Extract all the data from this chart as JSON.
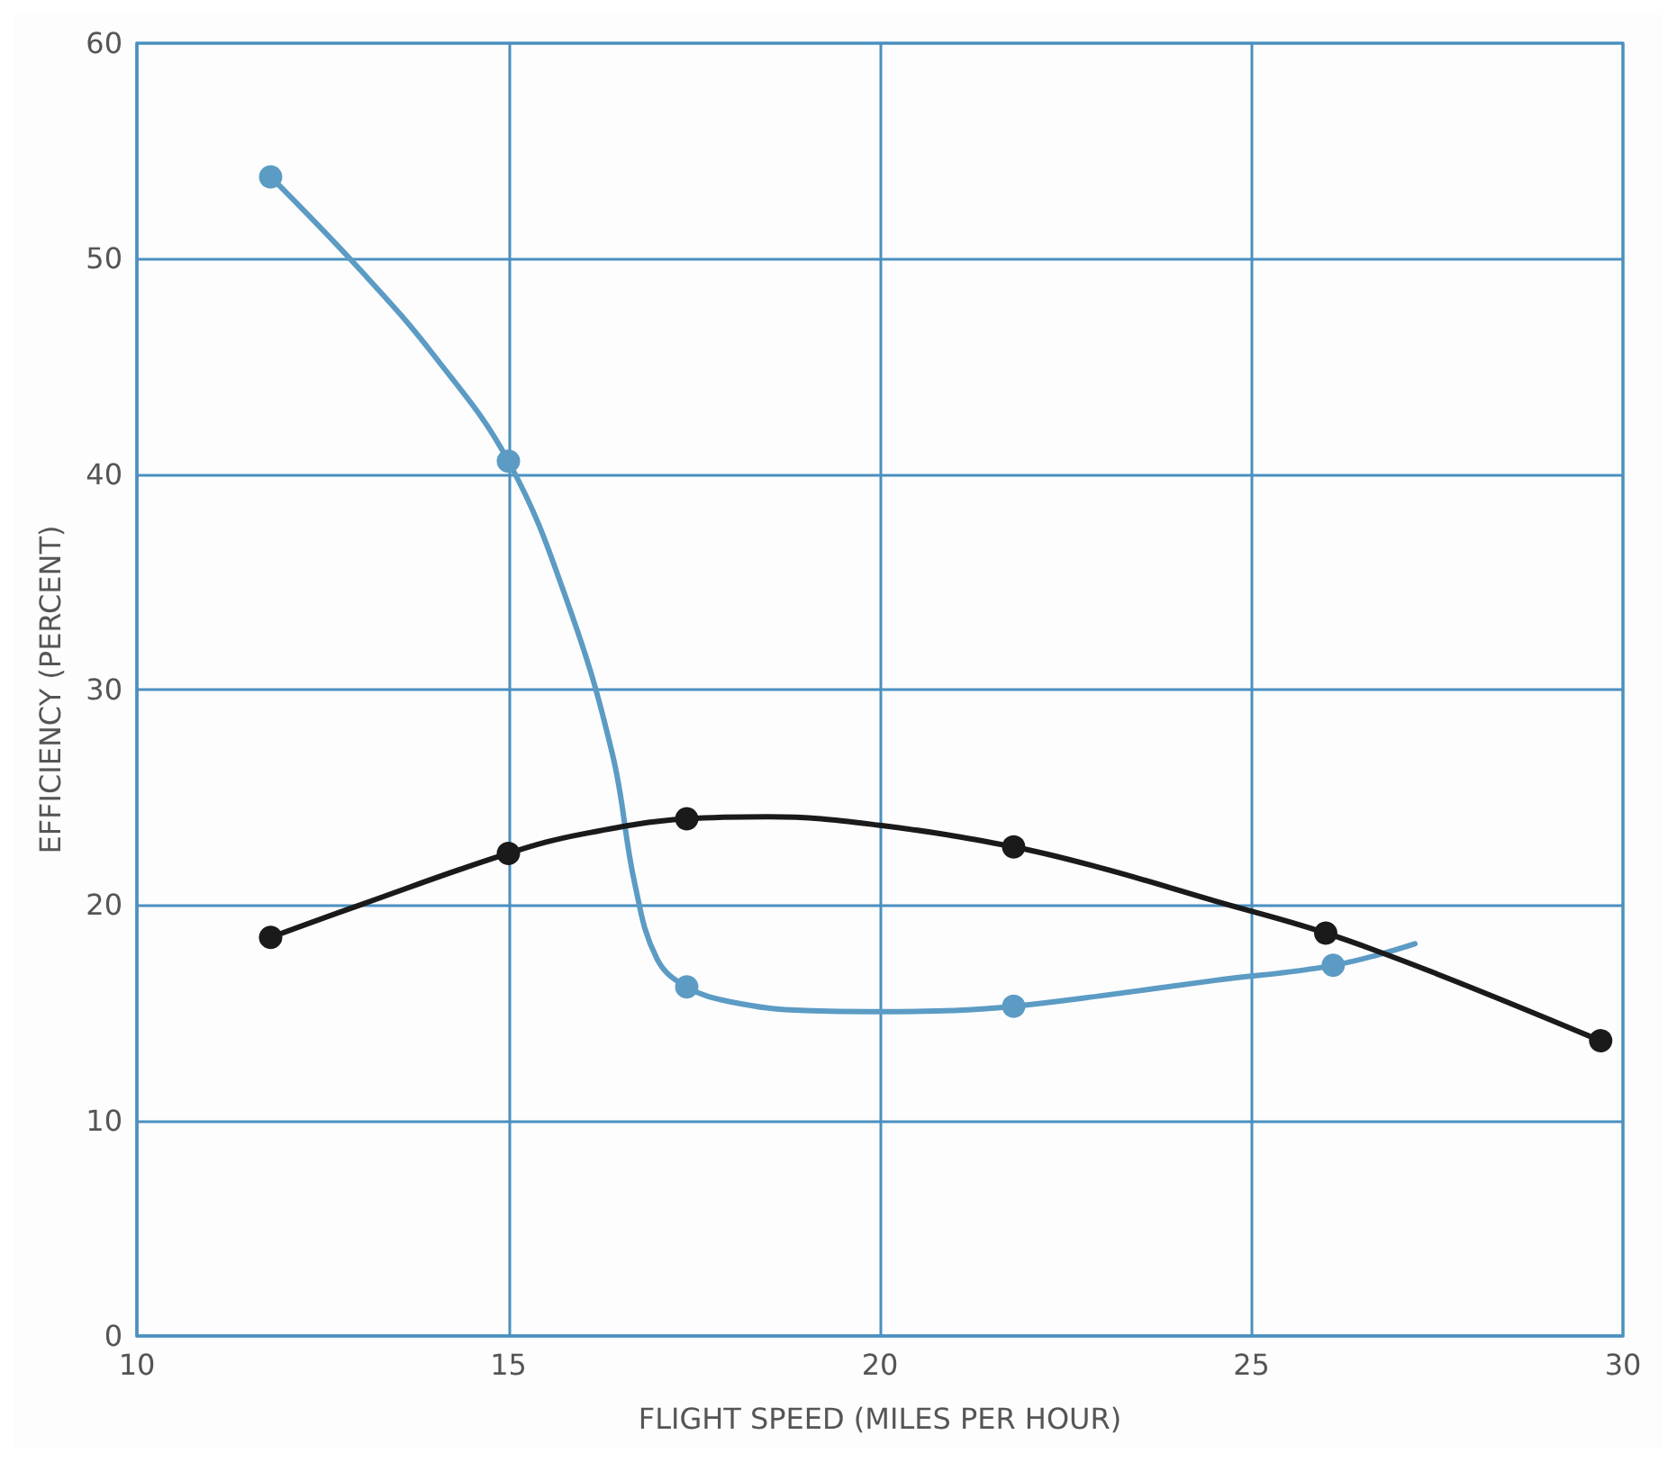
{
  "chart_data": {
    "type": "scatter",
    "xlabel": "FLIGHT SPEED (MILES PER HOUR)",
    "ylabel": "EFFICIENCY (PERCENT)",
    "xlim": [
      10,
      30
    ],
    "xticks": [
      10,
      15,
      20,
      25,
      30
    ],
    "ylim": [
      0,
      60
    ],
    "yticks": [
      0,
      10,
      20,
      30,
      40,
      50,
      60
    ],
    "grid": true,
    "marker": "circle",
    "series": [
      {
        "type": "line",
        "marker": "none",
        "color": "#5b9bc4",
        "x": [
          11.8,
          13,
          14,
          15,
          15.8,
          16.4,
          16.7,
          17,
          17.4,
          18,
          19,
          20,
          21,
          21.8,
          23,
          24.5,
          26.1,
          27.2
        ],
        "values": [
          53.8,
          49.5,
          45.5,
          40.6,
          34,
          27,
          21,
          17.5,
          16.2,
          15.5,
          15.1,
          15.05,
          15.1,
          15.3,
          15.8,
          16.5,
          17.2,
          18.2
        ]
      },
      {
        "type": "line",
        "marker": "none",
        "color": "#1a1a1a",
        "x": [
          11.8,
          13,
          15,
          16,
          17.4,
          18.5,
          20,
          21.8,
          23,
          24.5,
          26,
          27.5,
          29.7
        ],
        "values": [
          18.5,
          20,
          22.4,
          23.3,
          24,
          24.1,
          23.7,
          22.7,
          21.7,
          20.2,
          18.7,
          16.8,
          13.7
        ]
      },
      {
        "color": "#5b9bc4",
        "x": [
          11.8,
          15,
          17.4,
          21.8,
          26.1
        ],
        "values": [
          53.8,
          40.6,
          16.2,
          15.3,
          17.2
        ]
      },
      {
        "color": "#1a1a1a",
        "x": [
          11.8,
          15,
          17.4,
          21.8,
          26,
          29.7
        ],
        "values": [
          18.5,
          22.4,
          24,
          22.7,
          18.7,
          13.7
        ]
      }
    ]
  }
}
